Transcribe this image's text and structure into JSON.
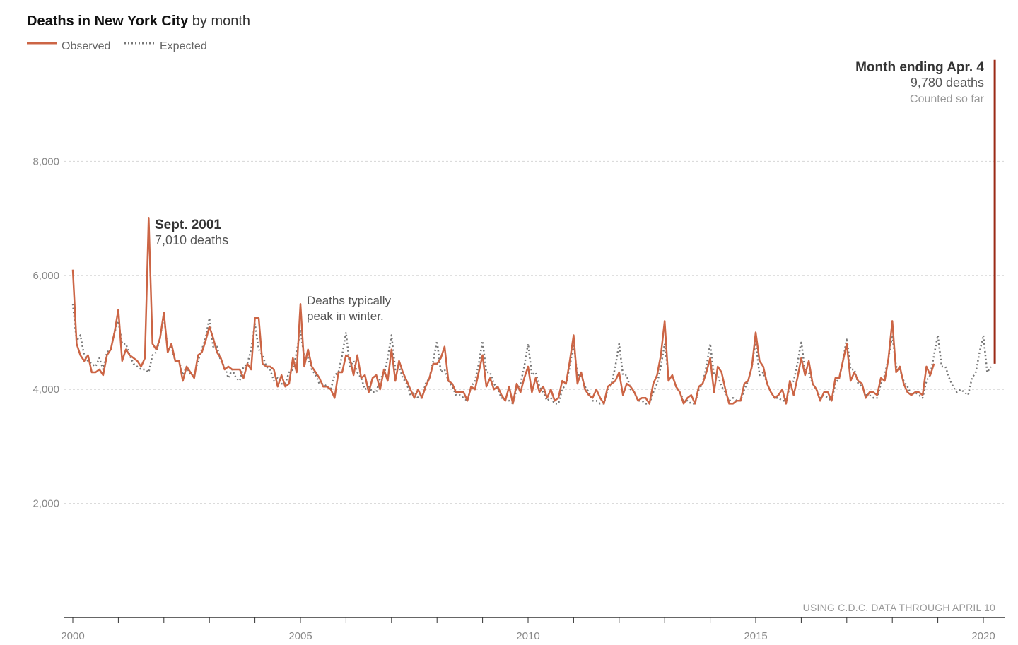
{
  "header": {
    "title_bold": "Deaths in New York City",
    "title_rest": " by month"
  },
  "legend": {
    "observed": "Observed",
    "expected": "Expected"
  },
  "colors": {
    "observed": "#cc6545",
    "spike": "#9b2a16",
    "expected": "#777777",
    "grid": "#d6d6d6",
    "axis": "#333333"
  },
  "annotations": {
    "apr": {
      "title": "Month ending Apr. 4",
      "value": "9,780 deaths",
      "note": "Counted so far"
    },
    "sept": {
      "title": "Sept. 2001",
      "value": "7,010 deaths"
    },
    "winter": {
      "line1": "Deaths typically",
      "line2": "peak in winter."
    }
  },
  "source": "USING C.D.C. DATA THROUGH APRIL 10",
  "chart_data": {
    "type": "line",
    "title": "Deaths in New York City by month",
    "xlabel": "",
    "ylabel": "",
    "ylim": [
      0,
      10000
    ],
    "xlim": [
      2000,
      2020.42
    ],
    "grid": true,
    "legend_position": "top-left",
    "yticks": [
      {
        "value": 2000,
        "label": "2,000"
      },
      {
        "value": 4000,
        "label": "4,000"
      },
      {
        "value": 6000,
        "label": "6,000"
      },
      {
        "value": 8000,
        "label": "8,000"
      }
    ],
    "xticks": [
      {
        "value": 2000,
        "label": "2000"
      },
      {
        "value": 2005,
        "label": "2005"
      },
      {
        "value": 2010,
        "label": "2010"
      },
      {
        "value": 2015,
        "label": "2015"
      },
      {
        "value": 2020,
        "label": "2020"
      }
    ],
    "series": [
      {
        "name": "Observed",
        "start": 2000.0,
        "step_months": 1,
        "values": [
          6100,
          4800,
          4600,
          4500,
          4600,
          4300,
          4300,
          4350,
          4250,
          4600,
          4700,
          5000,
          5400,
          4500,
          4700,
          4600,
          4550,
          4500,
          4400,
          4550,
          7010,
          4800,
          4700,
          4900,
          5350,
          4650,
          4800,
          4500,
          4500,
          4150,
          4400,
          4300,
          4200,
          4600,
          4650,
          4850,
          5100,
          4900,
          4650,
          4550,
          4350,
          4400,
          4350,
          4350,
          4350,
          4200,
          4450,
          4350,
          5250,
          5250,
          4450,
          4400,
          4400,
          4350,
          4050,
          4250,
          4050,
          4100,
          4550,
          4300,
          5500,
          4400,
          4700,
          4400,
          4300,
          4200,
          4050,
          4050,
          4000,
          3850,
          4300,
          4300,
          4600,
          4550,
          4250,
          4600,
          4200,
          4250,
          3950,
          4200,
          4250,
          4000,
          4350,
          4150,
          4700,
          4150,
          4500,
          4300,
          4150,
          4000,
          3850,
          4000,
          3850,
          4050,
          4200,
          4450,
          4450,
          4550,
          4750,
          4150,
          4100,
          3950,
          3950,
          3950,
          3800,
          4050,
          4000,
          4300,
          4600,
          4050,
          4200,
          4000,
          4050,
          3900,
          3800,
          4050,
          3750,
          4100,
          3950,
          4200,
          4400,
          3950,
          4200,
          3950,
          4050,
          3850,
          4000,
          3800,
          3850,
          4150,
          4100,
          4500,
          4950,
          4100,
          4300,
          4000,
          3900,
          3850,
          4000,
          3850,
          3750,
          4050,
          4100,
          4150,
          4300,
          3900,
          4100,
          4050,
          3950,
          3800,
          3850,
          3850,
          3750,
          4100,
          4250,
          4600,
          5200,
          4150,
          4250,
          4050,
          3950,
          3750,
          3850,
          3900,
          3750,
          4050,
          4100,
          4300,
          4550,
          3950,
          4400,
          4300,
          4000,
          3750,
          3750,
          3800,
          3800,
          4100,
          4150,
          4400,
          5000,
          4500,
          4400,
          4100,
          3950,
          3850,
          3900,
          4000,
          3750,
          4150,
          3900,
          4200,
          4550,
          4250,
          4500,
          4100,
          4000,
          3800,
          3950,
          3950,
          3800,
          4200,
          4200,
          4500,
          4800,
          4150,
          4300,
          4150,
          4100,
          3850,
          3950,
          3950,
          3900,
          4200,
          4150,
          4550,
          5200,
          4300,
          4400,
          4100,
          3950,
          3900,
          3950,
          3950,
          3900,
          4400,
          4250,
          4450
        ]
      },
      {
        "name": "Expected",
        "start": 2000.0,
        "step_months": 1,
        "values": [
          5500,
          4850,
          4950,
          4600,
          4500,
          4450,
          4400,
          4550,
          4350,
          4650,
          4700,
          5000,
          5200,
          4800,
          4800,
          4600,
          4450,
          4400,
          4350,
          4350,
          4300,
          4600,
          4650,
          4900,
          5300,
          4700,
          4750,
          4500,
          4500,
          4250,
          4400,
          4250,
          4250,
          4500,
          4700,
          4900,
          5250,
          4750,
          4750,
          4500,
          4400,
          4200,
          4350,
          4200,
          4150,
          4400,
          4450,
          4700,
          5150,
          4700,
          4600,
          4400,
          4350,
          4150,
          4200,
          4100,
          4100,
          4300,
          4350,
          4650,
          5050,
          4550,
          4550,
          4350,
          4250,
          4100,
          4100,
          4050,
          4000,
          4250,
          4300,
          4600,
          5000,
          4400,
          4500,
          4300,
          4200,
          4000,
          4050,
          3950,
          3950,
          4200,
          4250,
          4550,
          4950,
          4350,
          4400,
          4200,
          4100,
          3900,
          3950,
          3850,
          3850,
          4100,
          4200,
          4500,
          4850,
          4300,
          4350,
          4150,
          4050,
          3900,
          3900,
          3850,
          3800,
          4050,
          4150,
          4450,
          4850,
          4300,
          4300,
          4100,
          4000,
          3850,
          3850,
          3800,
          3750,
          4000,
          4100,
          4400,
          4800,
          4250,
          4300,
          4050,
          3950,
          3800,
          3850,
          3750,
          3750,
          4000,
          4100,
          4400,
          4800,
          4250,
          4250,
          4050,
          3950,
          3800,
          3800,
          3750,
          3750,
          4000,
          4100,
          4400,
          4800,
          4250,
          4250,
          4000,
          3950,
          3800,
          3800,
          3750,
          3750,
          3950,
          4100,
          4400,
          4800,
          4250,
          4250,
          4050,
          3950,
          3800,
          3800,
          3750,
          3750,
          4000,
          4100,
          4400,
          4800,
          4250,
          4250,
          4050,
          3950,
          3800,
          3850,
          3800,
          3800,
          4000,
          4150,
          4400,
          4850,
          4250,
          4300,
          4100,
          3950,
          3850,
          3850,
          3800,
          3800,
          4050,
          4150,
          4450,
          4850,
          4300,
          4300,
          4100,
          4000,
          3850,
          3900,
          3850,
          3800,
          4100,
          4200,
          4500,
          4900,
          4350,
          4350,
          4100,
          4050,
          3900,
          3900,
          3850,
          3850,
          4100,
          4250,
          4550,
          4950,
          4400,
          4350,
          4150,
          4050,
          3900,
          3950,
          3900,
          3850,
          4150,
          4250,
          4600,
          4950,
          4400,
          4400,
          4200,
          4050,
          3950,
          4000,
          3950,
          3900,
          4200,
          4300,
          4650,
          4950,
          4300,
          4400
        ]
      },
      {
        "name": "Month ending Apr. 4",
        "x": 2020.25,
        "values": [
          4450,
          9780
        ]
      }
    ]
  }
}
